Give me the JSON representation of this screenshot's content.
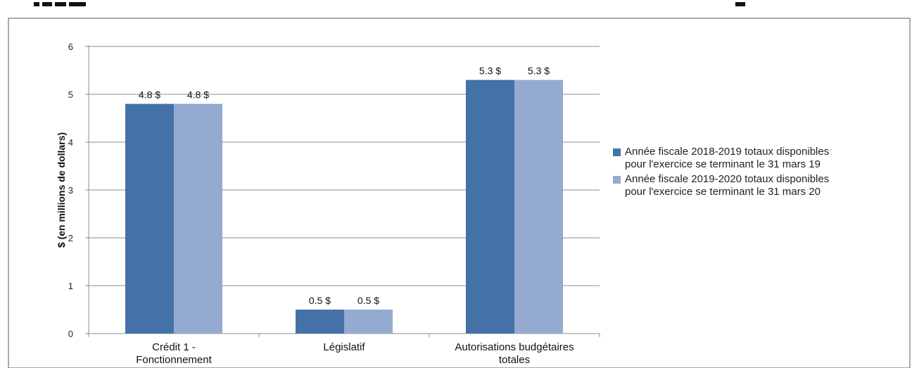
{
  "chart_data": {
    "type": "bar",
    "title": "",
    "xlabel": "",
    "ylabel": "$ (en millions de dollars)",
    "ylim": [
      0,
      6
    ],
    "yticks": [
      "0",
      "1",
      "2",
      "3",
      "4",
      "5",
      "6"
    ],
    "categories": [
      [
        "Crédit 1 -",
        "Fonctionnement"
      ],
      [
        "Législatif"
      ],
      [
        "Autorisations budgétaires",
        "totales"
      ]
    ],
    "series": [
      {
        "name": [
          "Année fiscale 2018-2019 totaux disponibles",
          "pour l'exercice se terminant le 31 mars 19"
        ],
        "values": [
          4.8,
          0.5,
          5.3
        ],
        "labels": [
          "4.8 $",
          "0.5 $",
          "5.3 $"
        ],
        "color": "#4472a7"
      },
      {
        "name": [
          "Année fiscale 2019-2020 totaux disponibles",
          "pour l'exercice se terminant le 31 mars 20"
        ],
        "values": [
          4.8,
          0.5,
          5.3
        ],
        "labels": [
          "4.8 $",
          "0.5 $",
          "5.3 $"
        ],
        "color": "#95aad0"
      }
    ],
    "grid": true,
    "legend_position": "right"
  }
}
